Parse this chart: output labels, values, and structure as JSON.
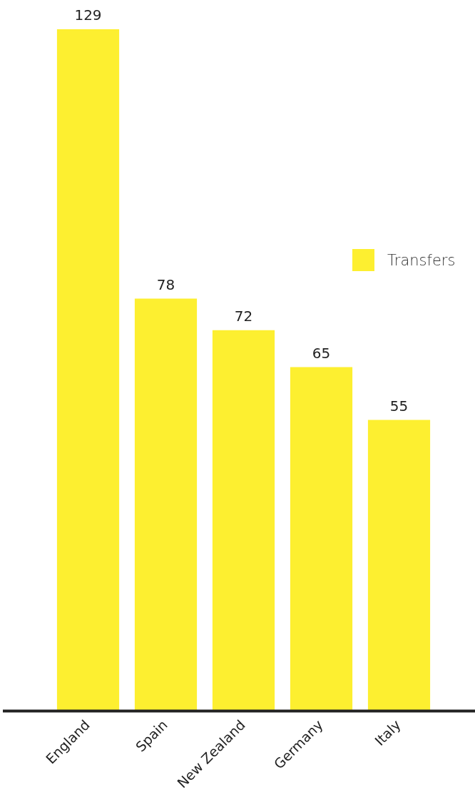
{
  "chart_data": {
    "type": "bar",
    "categories": [
      "England",
      "Spain",
      "New Zealand",
      "Germany",
      "Italy"
    ],
    "series": [
      {
        "name": "Transfers",
        "color": "#fdef30",
        "values": [
          129,
          78,
          72,
          65,
          55
        ]
      }
    ],
    "data_labels": true,
    "legend": "right",
    "grid": false
  }
}
